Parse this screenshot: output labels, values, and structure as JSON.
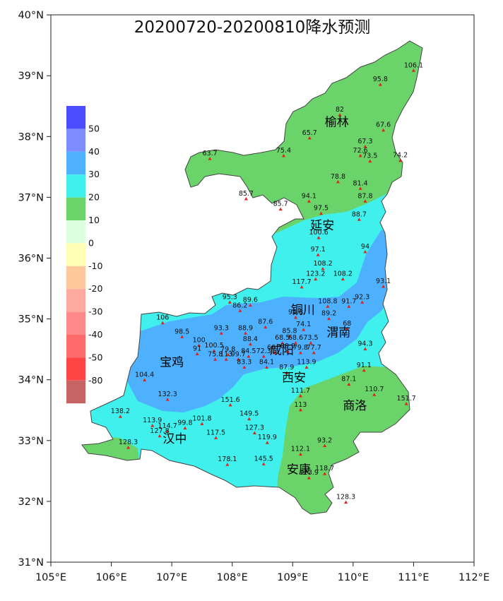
{
  "title": "20200720-20200810降水预测",
  "x_ticks": [
    "105°E",
    "106°E",
    "107°E",
    "108°E",
    "109°E",
    "110°E",
    "111°E",
    "112°E"
  ],
  "y_ticks": [
    "40°N",
    "39°N",
    "38°N",
    "37°N",
    "36°N",
    "35°N",
    "34°N",
    "33°N",
    "32°N",
    "31°N"
  ],
  "legend": [
    {
      "label": "50",
      "color": "#4b4bff"
    },
    {
      "label": "40",
      "color": "#7d8cff"
    },
    {
      "label": "30",
      "color": "#4db1ff"
    },
    {
      "label": "20",
      "color": "#3ff0ec"
    },
    {
      "label": "10",
      "color": "#6ad36a"
    },
    {
      "label": "0",
      "color": "#dcffdf"
    },
    {
      "label": "-10",
      "color": "#ffffb5"
    },
    {
      "label": "-20",
      "color": "#ffc89b"
    },
    {
      "label": "-30",
      "color": "#ffaaa0"
    },
    {
      "label": "-40",
      "color": "#ff8a8a"
    },
    {
      "label": "-50",
      "color": "#ff6a6a"
    },
    {
      "label": "-80",
      "color": "#ff4444"
    },
    {
      "label": "",
      "color": "#c66464"
    }
  ],
  "cities": [
    {
      "name": "榆林",
      "lon": 109.73,
      "lat": 38.24
    },
    {
      "name": "延安",
      "lon": 109.49,
      "lat": 36.54
    },
    {
      "name": "铜川",
      "lon": 109.17,
      "lat": 35.15
    },
    {
      "name": "渭南",
      "lon": 109.76,
      "lat": 34.78
    },
    {
      "name": "咸阳",
      "lon": 108.82,
      "lat": 34.49
    },
    {
      "name": "宝鸡",
      "lon": 107.0,
      "lat": 34.29
    },
    {
      "name": "西安",
      "lon": 109.02,
      "lat": 34.04
    },
    {
      "name": "商洛",
      "lon": 110.03,
      "lat": 33.58
    },
    {
      "name": "汉中",
      "lon": 107.05,
      "lat": 33.03
    },
    {
      "name": "安康",
      "lon": 109.1,
      "lat": 32.53
    }
  ],
  "stations": [
    {
      "v": "106.1",
      "lon": 111.0,
      "lat": 39.08
    },
    {
      "v": "95.8",
      "lon": 110.45,
      "lat": 38.85
    },
    {
      "v": "82",
      "lon": 109.78,
      "lat": 38.35
    },
    {
      "v": "67.6",
      "lon": 110.5,
      "lat": 38.1
    },
    {
      "v": "65.7",
      "lon": 109.28,
      "lat": 37.97
    },
    {
      "v": "67.3",
      "lon": 110.2,
      "lat": 37.83
    },
    {
      "v": "75.4",
      "lon": 108.85,
      "lat": 37.68
    },
    {
      "v": "72.6",
      "lon": 110.12,
      "lat": 37.68
    },
    {
      "v": "73.5",
      "lon": 110.28,
      "lat": 37.59
    },
    {
      "v": "74.2",
      "lon": 110.78,
      "lat": 37.6
    },
    {
      "v": "63.7",
      "lon": 107.63,
      "lat": 37.63
    },
    {
      "v": "78.8",
      "lon": 109.75,
      "lat": 37.25
    },
    {
      "v": "81.4",
      "lon": 110.12,
      "lat": 37.14
    },
    {
      "v": "85.7",
      "lon": 108.23,
      "lat": 36.97
    },
    {
      "v": "94.1",
      "lon": 109.27,
      "lat": 36.93
    },
    {
      "v": "87.8",
      "lon": 110.2,
      "lat": 36.93
    },
    {
      "v": "85.7",
      "lon": 108.8,
      "lat": 36.8
    },
    {
      "v": "97.5",
      "lon": 109.47,
      "lat": 36.73
    },
    {
      "v": "88.7",
      "lon": 110.1,
      "lat": 36.63
    },
    {
      "v": "100.6",
      "lon": 109.43,
      "lat": 36.33
    },
    {
      "v": "94",
      "lon": 110.2,
      "lat": 36.1
    },
    {
      "v": "97.1",
      "lon": 109.42,
      "lat": 36.05
    },
    {
      "v": "108.2",
      "lon": 109.5,
      "lat": 35.82
    },
    {
      "v": "123.2",
      "lon": 109.38,
      "lat": 35.65
    },
    {
      "v": "108.2",
      "lon": 109.83,
      "lat": 35.65
    },
    {
      "v": "117.7",
      "lon": 109.15,
      "lat": 35.52
    },
    {
      "v": "93.1",
      "lon": 110.5,
      "lat": 35.53
    },
    {
      "v": "95.3",
      "lon": 107.96,
      "lat": 35.27
    },
    {
      "v": "89.6",
      "lon": 108.3,
      "lat": 35.22
    },
    {
      "v": "86.2",
      "lon": 108.13,
      "lat": 35.13
    },
    {
      "v": "108.8",
      "lon": 109.58,
      "lat": 35.2
    },
    {
      "v": "91.7",
      "lon": 109.93,
      "lat": 35.2
    },
    {
      "v": "92.3",
      "lon": 110.15,
      "lat": 35.27
    },
    {
      "v": "94.8",
      "lon": 109.05,
      "lat": 35.02
    },
    {
      "v": "89.2",
      "lon": 109.6,
      "lat": 35.0
    },
    {
      "v": "106",
      "lon": 106.85,
      "lat": 34.93
    },
    {
      "v": "87.6",
      "lon": 108.55,
      "lat": 34.86
    },
    {
      "v": "74.1",
      "lon": 109.18,
      "lat": 34.82
    },
    {
      "v": "68",
      "lon": 109.9,
      "lat": 34.83
    },
    {
      "v": "93.3",
      "lon": 107.82,
      "lat": 34.76
    },
    {
      "v": "88.9",
      "lon": 108.22,
      "lat": 34.76
    },
    {
      "v": "98.5",
      "lon": 107.17,
      "lat": 34.7
    },
    {
      "v": "85.8",
      "lon": 108.95,
      "lat": 34.71
    },
    {
      "v": "88.4",
      "lon": 108.3,
      "lat": 34.58
    },
    {
      "v": "68.5",
      "lon": 108.83,
      "lat": 34.6
    },
    {
      "v": "68.6",
      "lon": 109.05,
      "lat": 34.6
    },
    {
      "v": "73.5",
      "lon": 109.3,
      "lat": 34.6
    },
    {
      "v": "94.3",
      "lon": 110.2,
      "lat": 34.5
    },
    {
      "v": "100",
      "lon": 107.45,
      "lat": 34.56
    },
    {
      "v": "100.5",
      "lon": 107.7,
      "lat": 34.47
    },
    {
      "v": "66.7",
      "lon": 108.7,
      "lat": 34.44
    },
    {
      "v": "88.9",
      "lon": 108.92,
      "lat": 34.46
    },
    {
      "v": "79.8",
      "lon": 109.13,
      "lat": 34.44
    },
    {
      "v": "77.7",
      "lon": 109.35,
      "lat": 34.44
    },
    {
      "v": "91",
      "lon": 107.42,
      "lat": 34.42
    },
    {
      "v": "79.8",
      "lon": 107.93,
      "lat": 34.41
    },
    {
      "v": "84.5",
      "lon": 108.27,
      "lat": 34.38
    },
    {
      "v": "72.3",
      "lon": 108.52,
      "lat": 34.38
    },
    {
      "v": "75.8",
      "lon": 107.72,
      "lat": 34.33
    },
    {
      "v": "113",
      "lon": 107.9,
      "lat": 34.33
    },
    {
      "v": "99.7",
      "lon": 108.1,
      "lat": 34.33
    },
    {
      "v": "83.3",
      "lon": 108.2,
      "lat": 34.2
    },
    {
      "v": "84.1",
      "lon": 108.57,
      "lat": 34.2
    },
    {
      "v": "113.9",
      "lon": 109.23,
      "lat": 34.2
    },
    {
      "v": "87.9",
      "lon": 108.9,
      "lat": 34.11
    },
    {
      "v": "91.1",
      "lon": 110.18,
      "lat": 34.15
    },
    {
      "v": "104.4",
      "lon": 106.55,
      "lat": 33.99
    },
    {
      "v": "87.1",
      "lon": 109.93,
      "lat": 33.92
    },
    {
      "v": "111.7",
      "lon": 109.13,
      "lat": 33.73
    },
    {
      "v": "110.7",
      "lon": 110.35,
      "lat": 33.75
    },
    {
      "v": "132.3",
      "lon": 106.93,
      "lat": 33.67
    },
    {
      "v": "151.7",
      "lon": 110.88,
      "lat": 33.6
    },
    {
      "v": "151.6",
      "lon": 107.97,
      "lat": 33.58
    },
    {
      "v": "113",
      "lon": 109.13,
      "lat": 33.5
    },
    {
      "v": "138.2",
      "lon": 106.15,
      "lat": 33.39
    },
    {
      "v": "149.5",
      "lon": 108.28,
      "lat": 33.35
    },
    {
      "v": "113.9",
      "lon": 106.68,
      "lat": 33.24
    },
    {
      "v": "101.8",
      "lon": 107.5,
      "lat": 33.27
    },
    {
      "v": "99.8",
      "lon": 107.22,
      "lat": 33.2
    },
    {
      "v": "114.7",
      "lon": 106.93,
      "lat": 33.15
    },
    {
      "v": "127.3",
      "lon": 108.37,
      "lat": 33.12
    },
    {
      "v": "117.5",
      "lon": 107.73,
      "lat": 33.04
    },
    {
      "v": "127.8",
      "lon": 106.8,
      "lat": 33.07
    },
    {
      "v": "119.9",
      "lon": 108.58,
      "lat": 32.96
    },
    {
      "v": "93.2",
      "lon": 109.53,
      "lat": 32.91
    },
    {
      "v": "128.3",
      "lon": 106.28,
      "lat": 32.88
    },
    {
      "v": "112.1",
      "lon": 109.13,
      "lat": 32.77
    },
    {
      "v": "178.1",
      "lon": 107.92,
      "lat": 32.6
    },
    {
      "v": "145.5",
      "lon": 108.52,
      "lat": 32.61
    },
    {
      "v": "118.7",
      "lon": 109.53,
      "lat": 32.45
    },
    {
      "v": "123.9",
      "lon": 109.27,
      "lat": 32.38
    },
    {
      "v": "128.3",
      "lon": 109.88,
      "lat": 31.98
    }
  ]
}
